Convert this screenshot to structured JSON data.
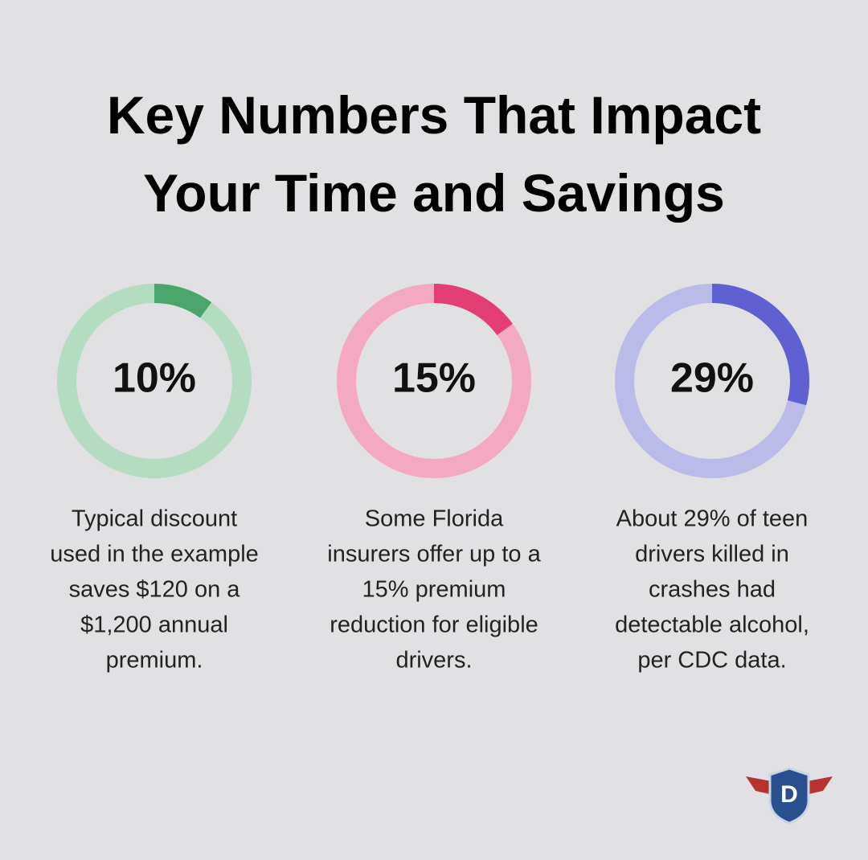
{
  "title": "Key Numbers That Impact Your Time and Savings",
  "logo_text": "D",
  "chart_data": [
    {
      "type": "donut",
      "values": [
        10
      ],
      "value_labels": [
        "10%"
      ],
      "total": 100,
      "color": "#4aa56a",
      "track_color": "#b3dcc0",
      "caption": [
        "Typical discount",
        "used in the example",
        "saves $120 on a",
        "$1,200 annual",
        "premium."
      ]
    },
    {
      "type": "donut",
      "values": [
        15
      ],
      "value_labels": [
        "15%"
      ],
      "total": 100,
      "color": "#e33f74",
      "track_color": "#f3a9c2",
      "caption": [
        "Some Florida",
        "insurers offer up to a",
        "15% premium",
        "reduction for eligible",
        "drivers."
      ]
    },
    {
      "type": "donut",
      "values": [
        29
      ],
      "value_labels": [
        "29%"
      ],
      "total": 100,
      "color": "#5f61d2",
      "track_color": "#bbbbea",
      "caption": [
        "About 29% of teen",
        "drivers killed in",
        "crashes had",
        "detectable alcohol,",
        "per CDC data."
      ]
    }
  ]
}
